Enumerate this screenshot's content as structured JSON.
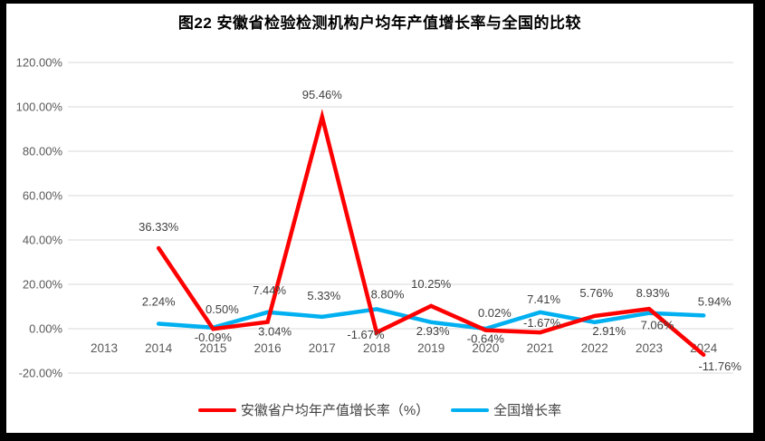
{
  "title": "图22  安徽省检验检测机构户均年产值增长率与全国的比较",
  "colors": {
    "frame": "#000000",
    "background": "#ffffff",
    "gridline": "#d9d9d9",
    "axis_text": "#595959",
    "label_text": "#404040",
    "anhui_red": "#ff0000",
    "national_blue": "#00b0f0"
  },
  "chart_data": {
    "type": "line",
    "title": "图22  安徽省检验检测机构户均年产值增长率与全国的比较",
    "categories": [
      "2013",
      "2014",
      "2015",
      "2016",
      "2017",
      "2018",
      "2019",
      "2020",
      "2021",
      "2022",
      "2023",
      "2024"
    ],
    "series": [
      {
        "name": "安徽省户均年产值增长率（%）",
        "color": "#ff0000",
        "values": [
          null,
          36.33,
          -0.09,
          3.04,
          95.46,
          -1.67,
          10.25,
          -0.64,
          -1.67,
          5.76,
          8.93,
          -11.76
        ],
        "labels": [
          null,
          "36.33%",
          "-0.09%",
          "3.04%",
          "95.46%",
          "-1.67%",
          "10.25%",
          "-0.64%",
          "-1.67%",
          "5.76%",
          "8.93%",
          "-11.76%"
        ],
        "label_offsets": [
          null,
          [
            0,
            -19
          ],
          [
            0,
            14
          ],
          [
            8,
            15
          ],
          [
            0,
            -20
          ],
          [
            -12,
            7
          ],
          [
            0,
            -20
          ],
          [
            0,
            14
          ],
          [
            2,
            -6
          ],
          [
            2,
            -21
          ],
          [
            4,
            -13
          ],
          [
            18,
            17
          ]
        ]
      },
      {
        "name": "全国增长率",
        "color": "#00b0f0",
        "values": [
          null,
          2.24,
          0.5,
          7.44,
          5.33,
          8.8,
          2.93,
          0.02,
          7.41,
          2.91,
          7.06,
          5.94
        ],
        "labels": [
          null,
          "2.24%",
          "0.50%",
          "7.44%",
          "5.33%",
          "8.80%",
          "2.93%",
          "0.02%",
          "7.41%",
          "2.91%",
          "7.06%",
          "5.94%"
        ],
        "label_offsets": [
          null,
          [
            0,
            -20
          ],
          [
            10,
            -16
          ],
          [
            2,
            -20
          ],
          [
            2,
            -19
          ],
          [
            12,
            -12
          ],
          [
            2,
            14
          ],
          [
            10,
            -13
          ],
          [
            4,
            -10
          ],
          [
            16,
            14
          ],
          [
            9,
            18
          ],
          [
            12,
            -11
          ]
        ]
      }
    ],
    "xlabel": "",
    "ylabel": "",
    "y_ticks": [
      "120.00%",
      "100.00%",
      "80.00%",
      "60.00%",
      "40.00%",
      "20.00%",
      "0.00%",
      "-20.00%"
    ],
    "y_tick_values": [
      120,
      100,
      80,
      60,
      40,
      20,
      0,
      -20
    ],
    "ylim": [
      -20,
      120
    ],
    "grid": true,
    "legend_position": "bottom"
  }
}
